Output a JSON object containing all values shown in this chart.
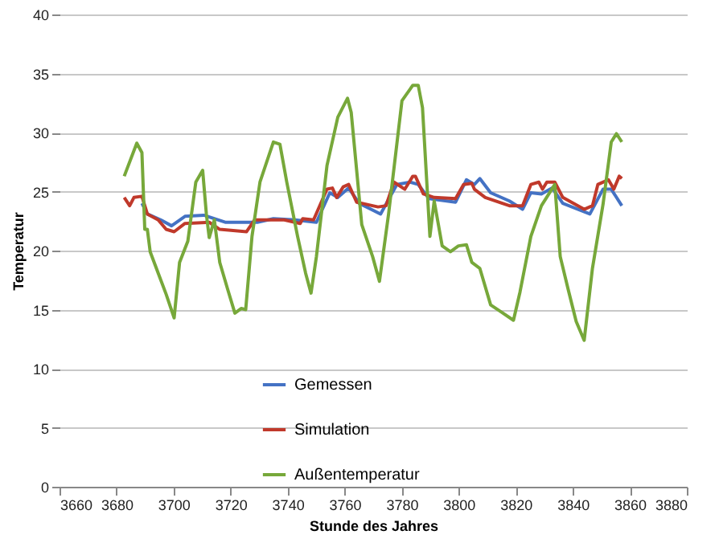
{
  "chart_data": {
    "type": "line",
    "xlabel": "Stunde des Jahres",
    "ylabel": "Temperatur",
    "xlim": [
      3660,
      3880
    ],
    "xticks": [
      3660,
      3680,
      3700,
      3720,
      3740,
      3760,
      3780,
      3800,
      3820,
      3840,
      3860,
      3880
    ],
    "ylim": [
      0,
      40
    ],
    "yticks": [
      0,
      5,
      10,
      15,
      20,
      25,
      30,
      35,
      40
    ],
    "grid": "y",
    "legend": "bottom",
    "marker": "none",
    "line_style": "solid",
    "series": [
      {
        "name": "Gemessen",
        "color": "#4472c4",
        "x": [
          3688.9,
          3690.8,
          3695.5,
          3699.3,
          3704,
          3710.6,
          3718.1,
          3729.4,
          3735,
          3742.5,
          3750.1,
          3754.8,
          3757.6,
          3761.4,
          3765.1,
          3772.6,
          3778.3,
          3783,
          3785.8,
          3789.6,
          3798.9,
          3802.7,
          3805.5,
          3807.4,
          3811.2,
          3817.8,
          3822.4,
          3825.3,
          3829,
          3832.8,
          3836.5,
          3846,
          3850.6,
          3853.5,
          3857.2
        ],
        "values": [
          24.0,
          23.1,
          22.6,
          22.1,
          22.9,
          23.0,
          22.4,
          22.4,
          22.7,
          22.6,
          22.4,
          24.9,
          24.5,
          25.3,
          24.0,
          23.1,
          25.6,
          25.8,
          25.6,
          24.4,
          24.1,
          26.0,
          25.6,
          26.1,
          24.9,
          24.2,
          23.5,
          24.9,
          24.8,
          25.3,
          24.0,
          23.1,
          25.2,
          25.2,
          23.8
        ]
      },
      {
        "name": "Simulation",
        "color": "#c0392b",
        "x": [
          3682.7,
          3684.6,
          3686.1,
          3688.9,
          3690.8,
          3694.6,
          3697.4,
          3700.2,
          3704,
          3712.5,
          3716.2,
          3725.6,
          3728.4,
          3738.8,
          3744.4,
          3745.3,
          3749.1,
          3753.8,
          3755.7,
          3757.2,
          3759.5,
          3761.4,
          3764.2,
          3771.7,
          3774.5,
          3777.3,
          3781.1,
          3783.9,
          3784.8,
          3787.6,
          3791.4,
          3798.9,
          3801.7,
          3804.6,
          3805.5,
          3809.3,
          3817.8,
          3822.4,
          3825.3,
          3828.1,
          3829.4,
          3830.9,
          3833.7,
          3836.5,
          3844,
          3846.9,
          3848.8,
          3852.5,
          3854.4,
          3856.3,
          3857.2
        ],
        "values": [
          24.5,
          23.8,
          24.5,
          24.6,
          23.1,
          22.6,
          21.8,
          21.6,
          22.3,
          22.4,
          21.8,
          21.6,
          22.6,
          22.6,
          22.3,
          22.7,
          22.6,
          25.2,
          25.3,
          24.5,
          25.4,
          25.6,
          24.1,
          23.7,
          23.8,
          25.8,
          25.2,
          26.3,
          26.3,
          24.8,
          24.5,
          24.4,
          25.6,
          25.7,
          25.2,
          24.5,
          23.8,
          23.8,
          25.6,
          25.8,
          25.2,
          25.8,
          25.8,
          24.5,
          23.5,
          23.8,
          25.6,
          26.0,
          25.2,
          26.3,
          26.1
        ]
      },
      {
        "name": "Außentemperatur",
        "color": "#77a83a",
        "x": [
          3682.7,
          3687.1,
          3688.9,
          3689.9,
          3690.8,
          3691.8,
          3694.6,
          3697.4,
          3700.2,
          3702.1,
          3705,
          3707.8,
          3710.2,
          3711.5,
          3712.5,
          3714.3,
          3716.2,
          3719,
          3721.5,
          3723.7,
          3725.3,
          3727.5,
          3730.3,
          3735,
          3737.3,
          3739.7,
          3743.5,
          3746.3,
          3748.2,
          3750.1,
          3753.8,
          3757.6,
          3761,
          3762.3,
          3766,
          3769.8,
          3772.2,
          3775.4,
          3780.1,
          3783.9,
          3785.8,
          3787.3,
          3789.9,
          3791.4,
          3794.2,
          3797.1,
          3799.9,
          3802.7,
          3804.6,
          3807.4,
          3811.2,
          3814.9,
          3819.2,
          3821.5,
          3825.3,
          3829,
          3833.7,
          3835.6,
          3838.4,
          3841.2,
          3844,
          3846.9,
          3850.6,
          3853.5,
          3855.3,
          3857.2
        ],
        "values": [
          26.3,
          29.1,
          28.3,
          21.8,
          21.8,
          19.9,
          18.1,
          16.3,
          14.3,
          19.0,
          20.8,
          25.8,
          26.8,
          23.1,
          21.1,
          22.6,
          19.0,
          16.7,
          14.7,
          15.1,
          15.0,
          21.2,
          25.8,
          29.2,
          29.0,
          25.8,
          21.2,
          18.1,
          16.4,
          19.5,
          27.2,
          31.3,
          32.9,
          31.7,
          22.2,
          19.5,
          17.4,
          23.1,
          32.7,
          34.0,
          34.0,
          32.1,
          21.2,
          24.2,
          20.4,
          19.9,
          20.4,
          20.5,
          19.0,
          18.5,
          15.4,
          14.8,
          14.1,
          16.5,
          21.2,
          23.8,
          25.6,
          19.5,
          16.7,
          14.0,
          12.4,
          18.5,
          23.9,
          29.2,
          29.9,
          29.2
        ]
      }
    ]
  }
}
